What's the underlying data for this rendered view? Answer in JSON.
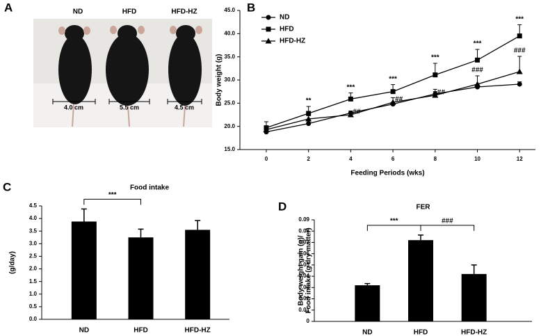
{
  "photo_panel": {
    "panel_label": "A",
    "groups": [
      "ND",
      "HFD",
      "HFD-HZ"
    ],
    "scale_labels": [
      "4.0 cm",
      "5.5 cm",
      "4.5 cm"
    ]
  },
  "chart_data": [
    {
      "type": "line",
      "panel_label": "B",
      "x_label": "Feeding Periods (wks)",
      "y_label": "Body weight (g)",
      "x": [
        0,
        2,
        4,
        6,
        8,
        10,
        12
      ],
      "xlim": [
        -1.25,
        12.75
      ],
      "xticks": [
        0,
        2,
        4,
        6,
        8,
        10,
        12
      ],
      "ylim": [
        15,
        45
      ],
      "yticks": [
        {
          "value": 15,
          "label": "15.0"
        },
        {
          "value": 20,
          "label": "20.0"
        },
        {
          "value": 25,
          "label": "25.0"
        },
        {
          "value": 30,
          "label": "30.0"
        },
        {
          "value": 35,
          "label": "35.0"
        },
        {
          "value": 40,
          "label": "40.0"
        },
        {
          "value": 45,
          "label": "45.0"
        }
      ],
      "legend": "top-left",
      "series": [
        {
          "name": "ND",
          "color": "#000000",
          "marker": "circle",
          "values": [
            18.8,
            20.6,
            22.9,
            24.8,
            27.0,
            28.5,
            29.1
          ],
          "errors": [
            0.3,
            0.3,
            0.4,
            0.4,
            0.5,
            0.5,
            0.5
          ]
        },
        {
          "name": "HFD",
          "color": "#000000",
          "marker": "square",
          "values": [
            19.7,
            22.8,
            25.9,
            27.5,
            31.1,
            34.3,
            39.5
          ],
          "errors": [
            1.3,
            1.5,
            1.3,
            1.5,
            2.5,
            2.3,
            2.4
          ]
        },
        {
          "name": "HFD-HZ",
          "color": "#000000",
          "marker": "triangle",
          "values": [
            19.3,
            21.6,
            22.5,
            25.2,
            26.7,
            29.1,
            31.8
          ],
          "errors": [
            0.6,
            0.7,
            0.8,
            1.0,
            1.3,
            1.8,
            3.3
          ]
        }
      ],
      "annotations": [
        {
          "x": 2,
          "series": "HFD",
          "text": "**"
        },
        {
          "x": 4,
          "series": "HFD",
          "text": "***"
        },
        {
          "x": 4,
          "series": "HFD-HZ",
          "text": "##"
        },
        {
          "x": 6,
          "series": "HFD",
          "text": "***"
        },
        {
          "x": 6,
          "series": "HFD-HZ",
          "text": "##"
        },
        {
          "x": 8,
          "series": "HFD",
          "text": "***"
        },
        {
          "x": 8,
          "series": "HFD-HZ",
          "text": "##"
        },
        {
          "x": 10,
          "series": "HFD",
          "text": "***"
        },
        {
          "x": 10,
          "series": "HFD-HZ",
          "text": "###"
        },
        {
          "x": 12,
          "series": "HFD",
          "text": "***"
        },
        {
          "x": 12,
          "series": "HFD-HZ",
          "text": "###"
        }
      ]
    },
    {
      "type": "bar",
      "panel_label": "C",
      "title": "Food intake",
      "y_label": "(g/day)",
      "categories": [
        "ND",
        "HFD",
        "HFD-HZ"
      ],
      "values": [
        3.88,
        3.25,
        3.55
      ],
      "errors": [
        0.5,
        0.33,
        0.37
      ],
      "color": "#000000",
      "ylim": [
        0,
        4.5
      ],
      "yticks": [
        {
          "value": 0,
          "label": "0.0"
        },
        {
          "value": 0.5,
          "label": "0.5"
        },
        {
          "value": 1,
          "label": "1.0"
        },
        {
          "value": 1.5,
          "label": "1.5"
        },
        {
          "value": 2,
          "label": "2.0"
        },
        {
          "value": 2.5,
          "label": "2.5"
        },
        {
          "value": 3,
          "label": "3.0"
        },
        {
          "value": 3.5,
          "label": "3.5"
        },
        {
          "value": 4,
          "label": "4.0"
        },
        {
          "value": 4.5,
          "label": "4.5"
        }
      ],
      "comparisons": [
        {
          "between": [
            "ND",
            "HFD"
          ],
          "text": "***"
        }
      ]
    },
    {
      "type": "bar",
      "panel_label": "D",
      "title": "FER",
      "y_label": [
        "Body weight gain (g)/",
        "Food intake (g dry matter)"
      ],
      "categories": [
        "ND",
        "HFD",
        "HFD-HZ"
      ],
      "values": [
        0.032,
        0.072,
        0.042
      ],
      "errors": [
        0.0015,
        0.0045,
        0.008
      ],
      "color": "#000000",
      "ylim": [
        0,
        0.09
      ],
      "yticks": [
        0,
        0.01,
        0.02,
        0.03,
        0.04,
        0.05,
        0.06,
        0.07,
        0.08,
        0.09
      ],
      "comparisons": [
        {
          "between": [
            "ND",
            "HFD"
          ],
          "text": "***"
        },
        {
          "between": [
            "HFD",
            "HFD-HZ"
          ],
          "text": "###"
        }
      ]
    }
  ]
}
